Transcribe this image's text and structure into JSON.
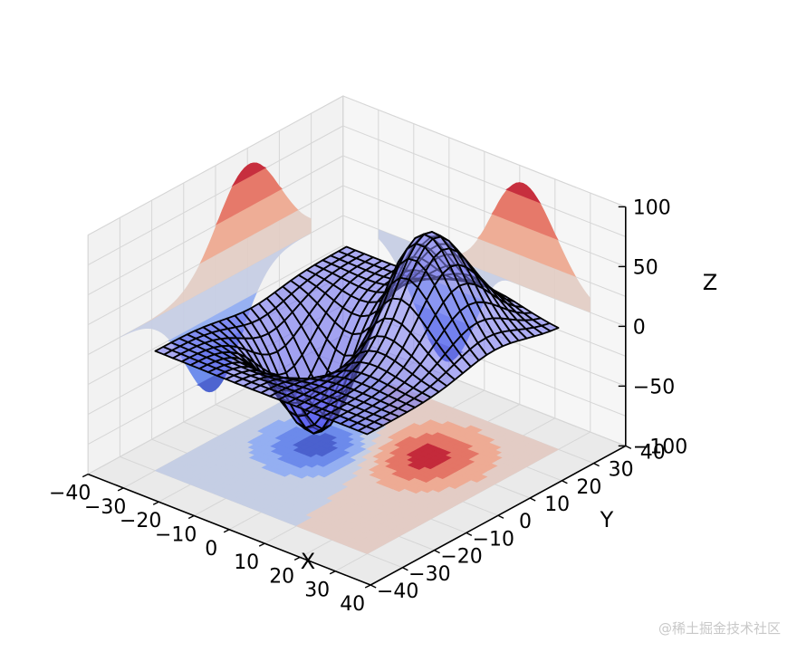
{
  "chart_data": {
    "type": "surface3d",
    "title": "",
    "xlabel": "X",
    "ylabel": "Y",
    "zlabel": "Z",
    "xlim": [
      -40,
      40
    ],
    "ylim": [
      -40,
      40
    ],
    "zlim": [
      -100,
      100
    ],
    "xticks": [
      "−40",
      "−30",
      "−20",
      "−10",
      "0",
      "10",
      "20",
      "30",
      "40"
    ],
    "yticks": [
      "−40",
      "−30",
      "−20",
      "−10",
      "0",
      "10",
      "20",
      "30",
      "40"
    ],
    "zticks": [
      "−100",
      "−50",
      "0",
      "50",
      "100"
    ],
    "grid": true,
    "surface": {
      "style": "wireframe over translucent blue surface",
      "peak": {
        "x": 10,
        "y": 10,
        "z": 85
      },
      "trough": {
        "x": -10,
        "y": 0,
        "z": -90
      },
      "edge_color": "#000000",
      "face_color": "#8c8cf0"
    },
    "projections": {
      "z": {
        "offset": -100,
        "colormap": "coolwarm"
      },
      "x": {
        "offset": -40,
        "colormap": "coolwarm"
      },
      "y": {
        "offset": 40,
        "colormap": "coolwarm"
      }
    }
  },
  "watermark": "@稀土掘金技术社区"
}
